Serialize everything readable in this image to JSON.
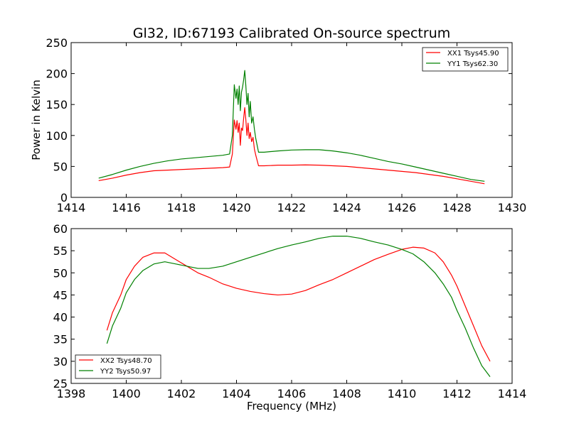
{
  "figure": {
    "title": "Gl32, ID:67193 Calibrated On-source spectrum",
    "xlabel": "Frequency (MHz)",
    "ylabel": "Power in Kelvin"
  },
  "chart_data": [
    {
      "type": "line",
      "title": "Gl32, ID:67193 Calibrated On-source spectrum",
      "xlabel": "",
      "ylabel": "Power in Kelvin",
      "xlim": [
        1414,
        1430
      ],
      "ylim": [
        0,
        250
      ],
      "xticks": [
        1414,
        1416,
        1418,
        1420,
        1422,
        1424,
        1426,
        1428,
        1430
      ],
      "yticks": [
        0,
        50,
        100,
        150,
        200,
        250
      ],
      "grid": false,
      "legend_position": "top-right",
      "series": [
        {
          "name": "XX1 Tsys45.90",
          "color": "#ff0000",
          "x": [
            1415.0,
            1415.5,
            1416.0,
            1416.5,
            1417.0,
            1417.5,
            1418.0,
            1418.5,
            1419.0,
            1419.5,
            1419.75,
            1419.85,
            1419.92,
            1419.98,
            1420.02,
            1420.06,
            1420.1,
            1420.14,
            1420.18,
            1420.22,
            1420.26,
            1420.3,
            1420.34,
            1420.38,
            1420.42,
            1420.46,
            1420.5,
            1420.55,
            1420.6,
            1420.65,
            1420.7,
            1420.8,
            1421.0,
            1421.5,
            1422.0,
            1422.5,
            1423.0,
            1423.5,
            1424.0,
            1424.5,
            1425.0,
            1425.5,
            1426.0,
            1426.5,
            1427.0,
            1427.5,
            1428.0,
            1428.5,
            1429.0
          ],
          "y": [
            27,
            31,
            36,
            40,
            43,
            44,
            45,
            46,
            47,
            48,
            49,
            70,
            125,
            110,
            124,
            105,
            120,
            84,
            112,
            108,
            128,
            145,
            125,
            100,
            120,
            95,
            105,
            90,
            97,
            78,
            68,
            51,
            51,
            52,
            52,
            52.5,
            52,
            51,
            50,
            48,
            46,
            44,
            42,
            40,
            37,
            34,
            30,
            26,
            22
          ]
        },
        {
          "name": "YY1 Tsys62.30",
          "color": "#008000",
          "x": [
            1415.0,
            1415.5,
            1416.0,
            1416.5,
            1417.0,
            1417.5,
            1418.0,
            1418.5,
            1419.0,
            1419.5,
            1419.75,
            1419.85,
            1419.92,
            1419.98,
            1420.02,
            1420.06,
            1420.1,
            1420.14,
            1420.18,
            1420.22,
            1420.26,
            1420.3,
            1420.34,
            1420.38,
            1420.42,
            1420.46,
            1420.5,
            1420.55,
            1420.6,
            1420.65,
            1420.7,
            1420.8,
            1421.0,
            1421.5,
            1422.0,
            1422.5,
            1423.0,
            1423.5,
            1424.0,
            1424.5,
            1425.0,
            1425.5,
            1426.0,
            1426.5,
            1427.0,
            1427.5,
            1428.0,
            1428.5,
            1429.0
          ],
          "y": [
            31,
            37,
            44,
            50,
            55,
            59,
            62,
            64,
            66,
            68,
            70,
            100,
            182,
            160,
            175,
            150,
            180,
            140,
            170,
            178,
            190,
            205,
            180,
            150,
            168,
            130,
            155,
            120,
            130,
            110,
            95,
            73,
            73,
            75,
            76.5,
            77,
            77,
            75,
            72,
            68,
            63,
            58,
            54,
            49,
            44,
            39,
            34,
            29,
            26
          ]
        }
      ]
    },
    {
      "type": "line",
      "title": "",
      "xlabel": "Frequency (MHz)",
      "ylabel": "",
      "xlim": [
        1398,
        1414
      ],
      "ylim": [
        25,
        60
      ],
      "xticks": [
        1398,
        1400,
        1402,
        1404,
        1406,
        1408,
        1410,
        1412,
        1414
      ],
      "yticks": [
        25,
        30,
        35,
        40,
        45,
        50,
        55,
        60
      ],
      "grid": false,
      "legend_position": "bottom-left",
      "series": [
        {
          "name": "XX2 Tsys48.70",
          "color": "#ff0000",
          "x": [
            1399.3,
            1399.5,
            1399.8,
            1400.0,
            1400.3,
            1400.6,
            1401.0,
            1401.4,
            1401.8,
            1402.2,
            1402.6,
            1403.0,
            1403.5,
            1404.0,
            1404.5,
            1405.0,
            1405.5,
            1406.0,
            1406.5,
            1407.0,
            1407.5,
            1408.0,
            1408.5,
            1409.0,
            1409.5,
            1410.0,
            1410.4,
            1410.8,
            1411.2,
            1411.5,
            1411.8,
            1412.0,
            1412.3,
            1412.6,
            1412.9,
            1413.2
          ],
          "y": [
            37,
            41,
            45,
            48.5,
            51.5,
            53.5,
            54.5,
            54.5,
            53,
            51.5,
            50,
            49,
            47.5,
            46.5,
            45.8,
            45.3,
            45.0,
            45.2,
            46.0,
            47.3,
            48.5,
            50,
            51.5,
            53,
            54.2,
            55.3,
            55.8,
            55.6,
            54.5,
            52.5,
            49.5,
            47,
            42.5,
            38,
            33.5,
            30
          ]
        },
        {
          "name": "YY2 Tsys50.97",
          "color": "#008000",
          "x": [
            1399.3,
            1399.5,
            1399.8,
            1400.0,
            1400.3,
            1400.6,
            1401.0,
            1401.4,
            1401.8,
            1402.2,
            1402.6,
            1403.0,
            1403.5,
            1404.0,
            1404.5,
            1405.0,
            1405.5,
            1406.0,
            1406.5,
            1407.0,
            1407.5,
            1408.0,
            1408.5,
            1409.0,
            1409.5,
            1410.0,
            1410.4,
            1410.8,
            1411.2,
            1411.5,
            1411.8,
            1412.0,
            1412.3,
            1412.6,
            1412.9,
            1413.2
          ],
          "y": [
            34,
            38,
            42,
            45.5,
            48.5,
            50.5,
            52,
            52.5,
            52,
            51.5,
            51,
            51,
            51.5,
            52.5,
            53.5,
            54.5,
            55.5,
            56.3,
            57,
            57.8,
            58.3,
            58.3,
            57.8,
            57.0,
            56.3,
            55.3,
            54.3,
            52.5,
            50,
            47.5,
            44.5,
            41.5,
            37.5,
            33,
            29,
            26.5
          ]
        }
      ]
    }
  ]
}
